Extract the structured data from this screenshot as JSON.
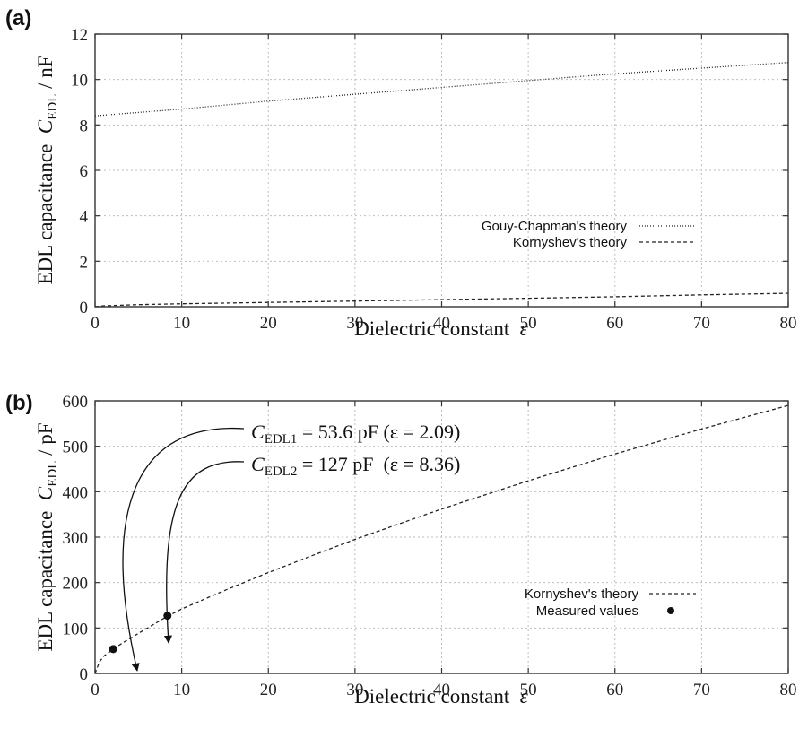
{
  "chart_data": [
    {
      "panel_label": "(a)",
      "type": "line",
      "xlabel": "Dielectric constant",
      "xlabel_symbol": "ε",
      "ylabel_prefix": "EDL capacitance",
      "ylabel_symbol": "C",
      "ylabel_subscript": "EDL",
      "ylabel_unit": "/ nF",
      "xlim": [
        0,
        80
      ],
      "ylim": [
        0,
        12
      ],
      "xticks": [
        0,
        10,
        20,
        30,
        40,
        50,
        60,
        70,
        80
      ],
      "yticks": [
        0,
        2,
        4,
        6,
        8,
        10,
        12
      ],
      "grid": true,
      "legend_position": "right",
      "series": [
        {
          "name": "Gouy-Chapman's theory",
          "style": "dotted",
          "x": [
            0,
            10,
            20,
            30,
            40,
            50,
            60,
            70,
            80
          ],
          "y": [
            8.4,
            8.7,
            9.05,
            9.35,
            9.65,
            9.95,
            10.25,
            10.5,
            10.75
          ]
        },
        {
          "name": "Kornyshev's theory",
          "style": "dashed",
          "x": [
            0,
            1,
            5,
            10,
            20,
            30,
            40,
            50,
            60,
            70,
            80
          ],
          "y": [
            0,
            0.04,
            0.09,
            0.13,
            0.19,
            0.25,
            0.31,
            0.37,
            0.44,
            0.52,
            0.59
          ]
        }
      ]
    },
    {
      "panel_label": "(b)",
      "type": "line",
      "xlabel": "Dielectric constant",
      "xlabel_symbol": "ε",
      "ylabel_prefix": "EDL capacitance",
      "ylabel_symbol": "C",
      "ylabel_subscript": "EDL",
      "ylabel_unit": "/ pF",
      "xlim": [
        0,
        80
      ],
      "ylim": [
        0,
        600
      ],
      "xticks": [
        0,
        10,
        20,
        30,
        40,
        50,
        60,
        70,
        80
      ],
      "yticks": [
        0,
        100,
        200,
        300,
        400,
        500,
        600
      ],
      "grid": true,
      "legend_position": "right",
      "series": [
        {
          "name": "Kornyshev's theory",
          "style": "dashed",
          "x": [
            0,
            0.5,
            1,
            2,
            3,
            5,
            8,
            10,
            15,
            20,
            25,
            30,
            40,
            50,
            60,
            70,
            80
          ],
          "y": [
            0,
            25,
            38,
            52,
            65,
            88,
            122,
            142,
            183,
            222,
            259,
            295,
            362,
            424,
            483,
            538,
            590
          ]
        },
        {
          "name": "Measured values",
          "style": "markers",
          "x": [
            2.09,
            8.36
          ],
          "y": [
            53.6,
            127
          ]
        }
      ],
      "annotations": [
        {
          "label": "EDL1",
          "value": "= 53.6 pF",
          "condition": "(ε = 2.09)",
          "x": 2.09,
          "y": 53.6
        },
        {
          "label": "EDL2",
          "value": "= 127 pF",
          "condition": "(ε = 8.36)",
          "x": 8.36,
          "y": 127
        }
      ]
    }
  ]
}
